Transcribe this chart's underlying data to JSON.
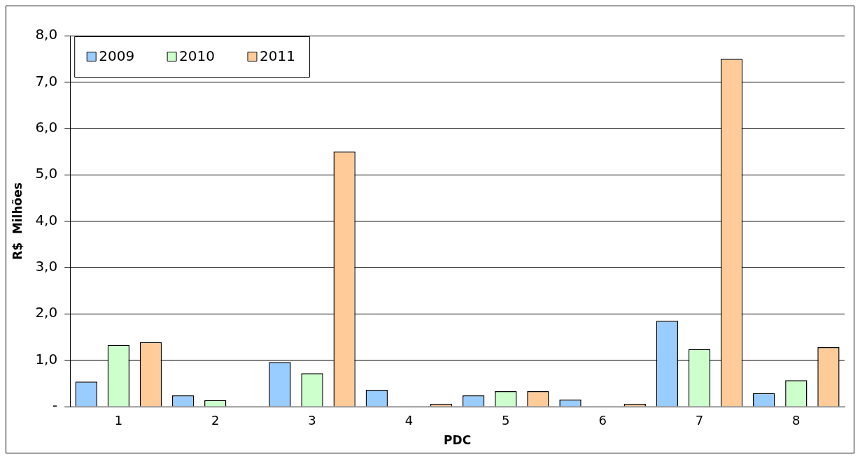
{
  "chart_data": {
    "type": "bar",
    "xlabel": "PDC",
    "ylabel": "R$  Milhões",
    "categories": [
      "1",
      "2",
      "3",
      "4",
      "5",
      "6",
      "7",
      "8"
    ],
    "series": [
      {
        "name": "2009",
        "color": "#99ccff",
        "values": [
          0.54,
          0.24,
          0.96,
          0.36,
          0.24,
          0.15,
          1.85,
          0.29
        ]
      },
      {
        "name": "2010",
        "color": "#ccffcc",
        "values": [
          1.33,
          0.14,
          0.72,
          0,
          0.33,
          0,
          1.24,
          0.57
        ]
      },
      {
        "name": "2011",
        "color": "#ffcc99",
        "values": [
          1.39,
          0,
          5.5,
          0.06,
          0.33,
          0.06,
          7.5,
          1.28
        ]
      }
    ],
    "ylim": [
      0,
      8
    ],
    "yticks": [
      {
        "value": 0,
        "label": "-"
      },
      {
        "value": 1,
        "label": "1,0"
      },
      {
        "value": 2,
        "label": "2,0"
      },
      {
        "value": 3,
        "label": "3,0"
      },
      {
        "value": 4,
        "label": "4,0"
      },
      {
        "value": 5,
        "label": "5,0"
      },
      {
        "value": 6,
        "label": "6,0"
      },
      {
        "value": 7,
        "label": "7,0"
      },
      {
        "value": 8,
        "label": "8,0"
      }
    ],
    "grid": "y",
    "legend": "top left"
  }
}
